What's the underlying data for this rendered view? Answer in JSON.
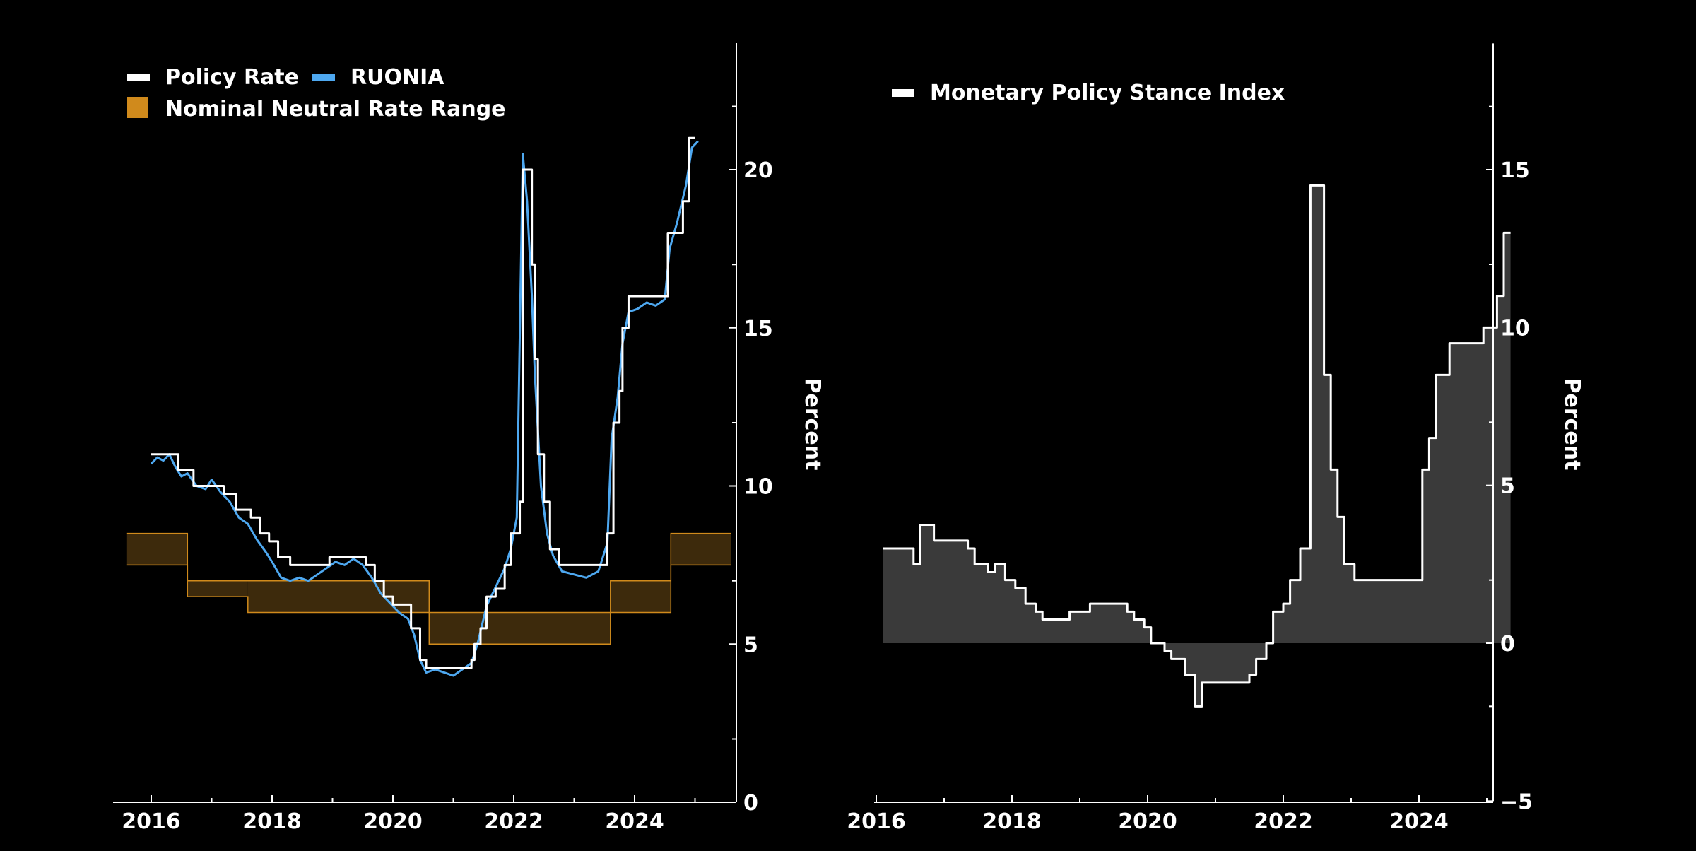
{
  "colors": {
    "background": "#000000",
    "text": "#ffffff",
    "policy_rate": "#ffffff",
    "ruonia": "#4ea8f0",
    "neutral_fill": "#3d2a0c",
    "neutral_edge": "#d08a1c",
    "neutral_legend": "#d08a1c",
    "stance_fill": "#3a3a3a",
    "stance_line": "#ffffff"
  },
  "chart_data": [
    {
      "type": "line",
      "ylabel": "Percent",
      "xlim": [
        2015.6,
        2025.6
      ],
      "ylim": [
        0,
        24
      ],
      "y_axis_side": "right",
      "x_ticks": [
        2016,
        2018,
        2020,
        2022,
        2024
      ],
      "x_tick_labels": [
        "2016",
        "2018",
        "2020",
        "2022",
        "2024"
      ],
      "y_ticks": [
        0,
        5,
        10,
        15,
        20
      ],
      "y_tick_labels": [
        "0",
        "5",
        "10",
        "15",
        "20"
      ],
      "legend": {
        "placement": "top-left",
        "entries": [
          "Policy Rate",
          "RUONIA",
          "Nominal Neutral Rate Range"
        ]
      },
      "series": [
        {
          "name": "Policy Rate",
          "kind": "step",
          "points": [
            [
              2016.0,
              11.0
            ],
            [
              2016.45,
              10.5
            ],
            [
              2016.7,
              10.0
            ],
            [
              2017.2,
              9.75
            ],
            [
              2017.4,
              9.25
            ],
            [
              2017.65,
              9.0
            ],
            [
              2017.8,
              8.5
            ],
            [
              2017.95,
              8.25
            ],
            [
              2018.1,
              7.75
            ],
            [
              2018.3,
              7.5
            ],
            [
              2018.75,
              7.5
            ],
            [
              2018.95,
              7.75
            ],
            [
              2019.45,
              7.75
            ],
            [
              2019.55,
              7.5
            ],
            [
              2019.7,
              7.0
            ],
            [
              2019.85,
              6.5
            ],
            [
              2020.0,
              6.25
            ],
            [
              2020.3,
              5.5
            ],
            [
              2020.45,
              4.5
            ],
            [
              2020.55,
              4.25
            ],
            [
              2021.2,
              4.25
            ],
            [
              2021.3,
              4.5
            ],
            [
              2021.35,
              5.0
            ],
            [
              2021.45,
              5.5
            ],
            [
              2021.55,
              6.5
            ],
            [
              2021.7,
              6.75
            ],
            [
              2021.85,
              7.5
            ],
            [
              2021.95,
              8.5
            ],
            [
              2022.1,
              9.5
            ],
            [
              2022.15,
              20.0
            ],
            [
              2022.3,
              17.0
            ],
            [
              2022.35,
              14.0
            ],
            [
              2022.4,
              11.0
            ],
            [
              2022.5,
              9.5
            ],
            [
              2022.6,
              8.0
            ],
            [
              2022.75,
              7.5
            ],
            [
              2023.55,
              8.5
            ],
            [
              2023.65,
              12.0
            ],
            [
              2023.75,
              13.0
            ],
            [
              2023.8,
              15.0
            ],
            [
              2023.9,
              16.0
            ],
            [
              2024.5,
              16.0
            ],
            [
              2024.55,
              18.0
            ],
            [
              2024.8,
              19.0
            ],
            [
              2024.9,
              21.0
            ],
            [
              2025.0,
              21.0
            ]
          ]
        },
        {
          "name": "RUONIA",
          "kind": "line",
          "points": [
            [
              2016.0,
              10.7
            ],
            [
              2016.1,
              10.9
            ],
            [
              2016.2,
              10.8
            ],
            [
              2016.3,
              11.0
            ],
            [
              2016.4,
              10.6
            ],
            [
              2016.5,
              10.3
            ],
            [
              2016.6,
              10.4
            ],
            [
              2016.75,
              10.0
            ],
            [
              2016.9,
              9.9
            ],
            [
              2017.0,
              10.2
            ],
            [
              2017.15,
              9.8
            ],
            [
              2017.3,
              9.5
            ],
            [
              2017.45,
              9.0
            ],
            [
              2017.6,
              8.8
            ],
            [
              2017.75,
              8.3
            ],
            [
              2017.9,
              7.9
            ],
            [
              2018.0,
              7.6
            ],
            [
              2018.15,
              7.1
            ],
            [
              2018.3,
              7.0
            ],
            [
              2018.45,
              7.1
            ],
            [
              2018.6,
              7.0
            ],
            [
              2018.75,
              7.2
            ],
            [
              2018.9,
              7.4
            ],
            [
              2019.05,
              7.6
            ],
            [
              2019.2,
              7.5
            ],
            [
              2019.35,
              7.7
            ],
            [
              2019.5,
              7.5
            ],
            [
              2019.65,
              7.1
            ],
            [
              2019.8,
              6.6
            ],
            [
              2019.95,
              6.3
            ],
            [
              2020.1,
              6.0
            ],
            [
              2020.25,
              5.8
            ],
            [
              2020.35,
              5.3
            ],
            [
              2020.45,
              4.5
            ],
            [
              2020.55,
              4.1
            ],
            [
              2020.7,
              4.2
            ],
            [
              2020.85,
              4.1
            ],
            [
              2021.0,
              4.0
            ],
            [
              2021.15,
              4.2
            ],
            [
              2021.3,
              4.4
            ],
            [
              2021.4,
              5.0
            ],
            [
              2021.55,
              6.2
            ],
            [
              2021.7,
              6.8
            ],
            [
              2021.85,
              7.4
            ],
            [
              2021.95,
              8.0
            ],
            [
              2022.05,
              9.0
            ],
            [
              2022.15,
              20.5
            ],
            [
              2022.22,
              19.0
            ],
            [
              2022.3,
              16.0
            ],
            [
              2022.35,
              13.5
            ],
            [
              2022.45,
              10.0
            ],
            [
              2022.55,
              8.5
            ],
            [
              2022.65,
              7.8
            ],
            [
              2022.8,
              7.3
            ],
            [
              2023.0,
              7.2
            ],
            [
              2023.2,
              7.1
            ],
            [
              2023.4,
              7.3
            ],
            [
              2023.55,
              8.2
            ],
            [
              2023.62,
              11.5
            ],
            [
              2023.72,
              12.8
            ],
            [
              2023.8,
              14.5
            ],
            [
              2023.9,
              15.5
            ],
            [
              2024.05,
              15.6
            ],
            [
              2024.2,
              15.8
            ],
            [
              2024.35,
              15.7
            ],
            [
              2024.5,
              15.9
            ],
            [
              2024.58,
              17.5
            ],
            [
              2024.7,
              18.3
            ],
            [
              2024.85,
              19.5
            ],
            [
              2024.95,
              20.7
            ],
            [
              2025.05,
              20.9
            ]
          ]
        },
        {
          "name": "Nominal Neutral Rate Range",
          "kind": "band",
          "segments": [
            [
              2015.6,
              2016.6,
              7.5,
              8.5
            ],
            [
              2016.6,
              2017.6,
              6.5,
              7.0
            ],
            [
              2017.6,
              2020.6,
              6.0,
              7.0
            ],
            [
              2020.6,
              2023.6,
              5.0,
              6.0
            ],
            [
              2023.6,
              2024.6,
              6.0,
              7.0
            ],
            [
              2024.6,
              2025.6,
              7.5,
              8.5
            ]
          ]
        }
      ]
    },
    {
      "type": "area",
      "ylabel": "Percent",
      "xlim": [
        2015.9,
        2025.1
      ],
      "ylim": [
        -5,
        19
      ],
      "y_axis_side": "right",
      "x_ticks": [
        2016,
        2018,
        2020,
        2022,
        2024
      ],
      "x_tick_labels": [
        "2016",
        "2018",
        "2020",
        "2022",
        "2024"
      ],
      "y_ticks": [
        -5,
        0,
        5,
        10,
        15
      ],
      "y_tick_labels": [
        "−5",
        "0",
        "5",
        "10",
        "15"
      ],
      "legend": {
        "placement": "top-left",
        "entries": [
          "Monetary Policy Stance Index"
        ]
      },
      "series": [
        {
          "name": "Monetary Policy Stance Index",
          "kind": "step",
          "points": [
            [
              2016.1,
              3.0
            ],
            [
              2016.55,
              2.5
            ],
            [
              2016.65,
              3.75
            ],
            [
              2016.85,
              3.25
            ],
            [
              2017.35,
              3.0
            ],
            [
              2017.45,
              2.5
            ],
            [
              2017.65,
              2.25
            ],
            [
              2017.75,
              2.5
            ],
            [
              2017.9,
              2.0
            ],
            [
              2018.05,
              1.75
            ],
            [
              2018.2,
              1.25
            ],
            [
              2018.35,
              1.0
            ],
            [
              2018.45,
              0.75
            ],
            [
              2018.85,
              1.0
            ],
            [
              2019.15,
              1.25
            ],
            [
              2019.7,
              1.0
            ],
            [
              2019.8,
              0.75
            ],
            [
              2019.95,
              0.5
            ],
            [
              2020.05,
              0.0
            ],
            [
              2020.25,
              -0.25
            ],
            [
              2020.35,
              -0.5
            ],
            [
              2020.55,
              -1.0
            ],
            [
              2020.7,
              -2.0
            ],
            [
              2020.8,
              -1.25
            ],
            [
              2021.5,
              -1.0
            ],
            [
              2021.6,
              -0.5
            ],
            [
              2021.75,
              0.0
            ],
            [
              2021.85,
              1.0
            ],
            [
              2022.0,
              1.25
            ],
            [
              2022.1,
              2.0
            ],
            [
              2022.25,
              3.0
            ],
            [
              2022.4,
              14.5
            ],
            [
              2022.6,
              8.5
            ],
            [
              2022.7,
              5.5
            ],
            [
              2022.8,
              4.0
            ],
            [
              2022.9,
              2.5
            ],
            [
              2023.05,
              2.0
            ],
            [
              2024.05,
              5.5
            ],
            [
              2024.15,
              6.5
            ],
            [
              2024.25,
              8.5
            ],
            [
              2024.45,
              9.5
            ],
            [
              2024.95,
              10.0
            ],
            [
              2025.15,
              11.0
            ],
            [
              2025.25,
              13.0
            ],
            [
              2025.35,
              13.0
            ]
          ]
        }
      ]
    }
  ]
}
